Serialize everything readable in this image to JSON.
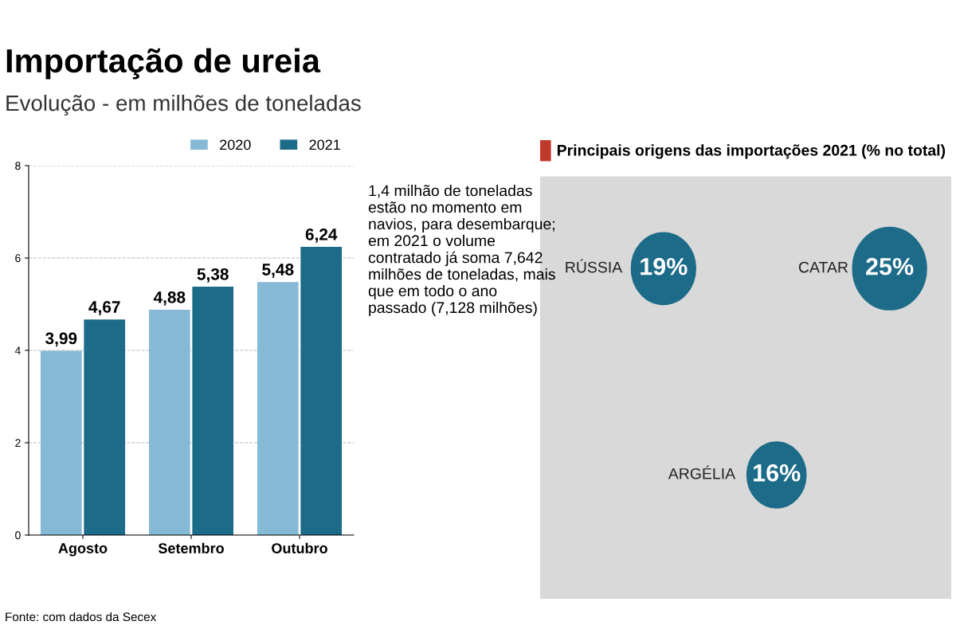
{
  "chart_data": [
    {
      "type": "bar",
      "title": "Importação de ureia",
      "subtitle": "Evolução - em milhões de toneladas",
      "categories": [
        "Agosto",
        "Setembro",
        "Outubro"
      ],
      "series": [
        {
          "name": "2020",
          "color": "#86b9d6",
          "values": [
            3.99,
            4.88,
            5.48
          ],
          "value_labels": [
            "3,99",
            "4,88",
            "5,48"
          ]
        },
        {
          "name": "2021",
          "color": "#1c6b88",
          "values": [
            4.67,
            5.38,
            6.24
          ],
          "value_labels": [
            "4,67",
            "5,38",
            "6,24"
          ]
        }
      ],
      "ylim": [
        0,
        8
      ],
      "yticks": [
        0,
        2,
        4,
        6,
        8
      ],
      "grid": "y",
      "legend": "top right",
      "annotations": [
        "1,4 milhão de toneladas estão no momento em navios, para desembarque; em 2021 o volume contratado já soma 7,642 milhões de toneladas, mais que em todo o ano passado (7,128 milhões)",
        "Fonte: com dados da Secex"
      ]
    },
    {
      "type": "other",
      "title": "Principais origens das importações 2021 (% no total)",
      "categories": [
        "RÚSSIA",
        "ARGÉLIA",
        "CATAR"
      ],
      "values": [
        19,
        16,
        25
      ],
      "value_labels": [
        "19%",
        "16%",
        "25%"
      ],
      "colors": [
        "#1c6b88",
        "#1c6b88",
        "#1c6b88"
      ]
    }
  ]
}
